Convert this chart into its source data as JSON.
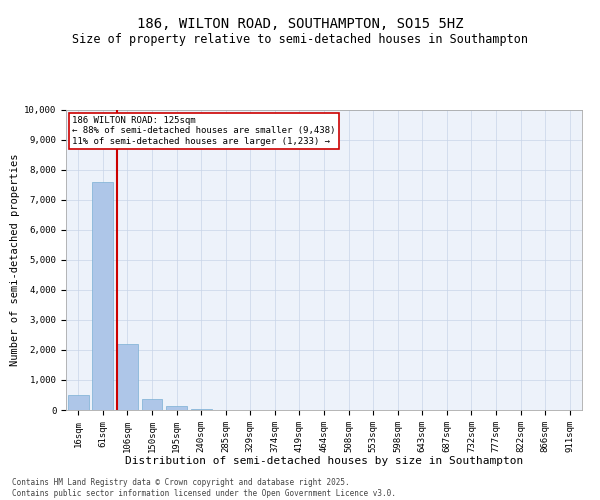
{
  "title": "186, WILTON ROAD, SOUTHAMPTON, SO15 5HZ",
  "subtitle": "Size of property relative to semi-detached houses in Southampton",
  "xlabel": "Distribution of semi-detached houses by size in Southampton",
  "ylabel": "Number of semi-detached properties",
  "categories": [
    "16sqm",
    "61sqm",
    "106sqm",
    "150sqm",
    "195sqm",
    "240sqm",
    "285sqm",
    "329sqm",
    "374sqm",
    "419sqm",
    "464sqm",
    "508sqm",
    "553sqm",
    "598sqm",
    "643sqm",
    "687sqm",
    "732sqm",
    "777sqm",
    "822sqm",
    "866sqm",
    "911sqm"
  ],
  "values": [
    500,
    7600,
    2200,
    380,
    130,
    50,
    0,
    0,
    0,
    0,
    0,
    0,
    0,
    0,
    0,
    0,
    0,
    0,
    0,
    0,
    0
  ],
  "bar_color": "#aec6e8",
  "bar_edge_color": "#7aafd4",
  "vline_color": "#cc0000",
  "annotation_text": "186 WILTON ROAD: 125sqm\n← 88% of semi-detached houses are smaller (9,438)\n11% of semi-detached houses are larger (1,233) →",
  "annotation_box_color": "#ffffff",
  "annotation_box_edge_color": "#cc0000",
  "ylim": [
    0,
    10000
  ],
  "yticks": [
    0,
    1000,
    2000,
    3000,
    4000,
    5000,
    6000,
    7000,
    8000,
    9000,
    10000
  ],
  "background_color": "#ffffff",
  "plot_bg_color": "#edf2fa",
  "grid_color": "#c8d4e8",
  "footer_text": "Contains HM Land Registry data © Crown copyright and database right 2025.\nContains public sector information licensed under the Open Government Licence v3.0.",
  "title_fontsize": 10,
  "subtitle_fontsize": 8.5,
  "xlabel_fontsize": 8,
  "ylabel_fontsize": 7.5,
  "tick_fontsize": 6.5,
  "annot_fontsize": 6.5,
  "footer_fontsize": 5.5
}
